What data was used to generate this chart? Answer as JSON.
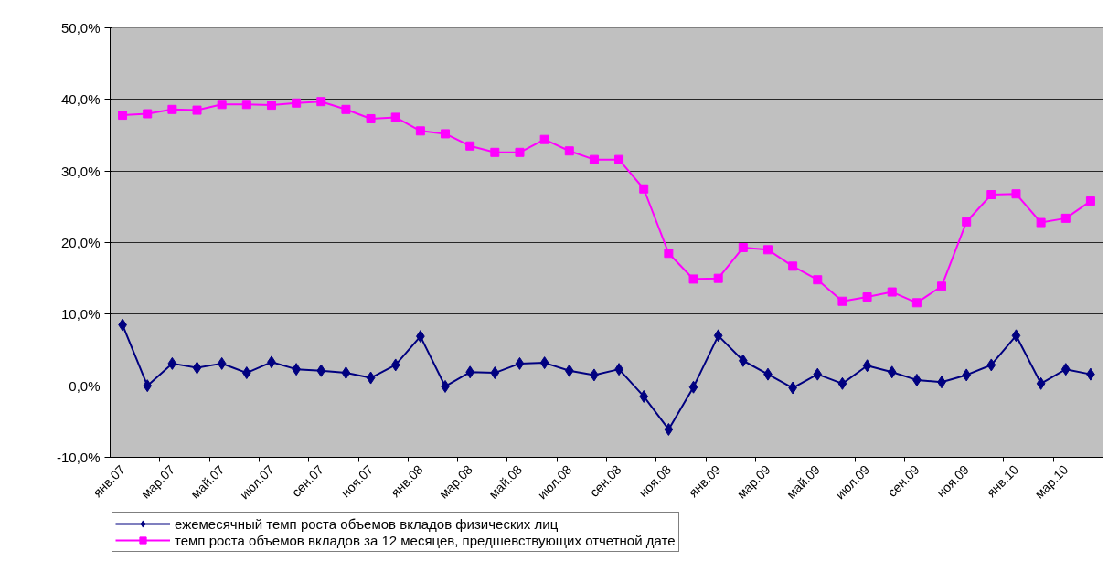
{
  "chart_data": {
    "type": "line",
    "categories": [
      "янв.07",
      null,
      "мар.07",
      null,
      "май.07",
      null,
      "июл.07",
      null,
      "сен.07",
      null,
      "ноя.07",
      null,
      "янв.08",
      null,
      "мар.08",
      null,
      "май.08",
      null,
      "июл.08",
      null,
      "сен.08",
      null,
      "ноя.08",
      null,
      "янв.09",
      null,
      "мар.09",
      null,
      "май.09",
      null,
      "июл.09",
      null,
      "сен.09",
      null,
      "ноя.09",
      null,
      "янв.10",
      null,
      "мар.10",
      null
    ],
    "series": [
      {
        "name": "ежемесячный темп роста объемов вкладов физических лиц",
        "color": "#000080",
        "marker": "diamond",
        "values": [
          8.5,
          0.0,
          3.1,
          2.5,
          3.1,
          1.8,
          3.3,
          2.3,
          2.1,
          1.8,
          1.1,
          2.9,
          6.9,
          -0.1,
          1.9,
          1.8,
          3.1,
          3.2,
          2.1,
          1.5,
          2.3,
          -1.5,
          -6.1,
          -0.2,
          7.0,
          3.5,
          1.6,
          -0.3,
          1.6,
          0.3,
          2.8,
          1.9,
          0.8,
          0.5,
          1.5,
          2.9,
          7.0,
          0.3,
          2.3,
          1.6
        ]
      },
      {
        "name": "темп роста объемов вкладов за 12 месяцев, предшевствующих отчетной дате",
        "color": "#ff00ff",
        "marker": "square",
        "values": [
          37.8,
          38.0,
          38.6,
          38.5,
          39.3,
          39.3,
          39.2,
          39.5,
          39.7,
          38.6,
          37.3,
          37.5,
          35.6,
          35.2,
          33.5,
          32.6,
          32.6,
          34.4,
          32.8,
          31.6,
          31.6,
          27.5,
          18.5,
          14.9,
          15.0,
          19.3,
          19.0,
          16.7,
          14.8,
          11.8,
          12.4,
          13.1,
          11.6,
          13.9,
          22.9,
          26.7,
          26.8,
          22.8,
          23.4,
          25.8
        ]
      }
    ],
    "ylim": [
      -10,
      50
    ],
    "yticks": [
      {
        "value": -10,
        "label": "-10,0%"
      },
      {
        "value": 0,
        "label": "0,0%"
      },
      {
        "value": 10,
        "label": "10,0%"
      },
      {
        "value": 20,
        "label": "20,0%"
      },
      {
        "value": 30,
        "label": "30,0%"
      },
      {
        "value": 40,
        "label": "40,0%"
      },
      {
        "value": 50,
        "label": "50,0%"
      }
    ],
    "grid": "y",
    "legend": "bottom",
    "line_style": "solid"
  }
}
